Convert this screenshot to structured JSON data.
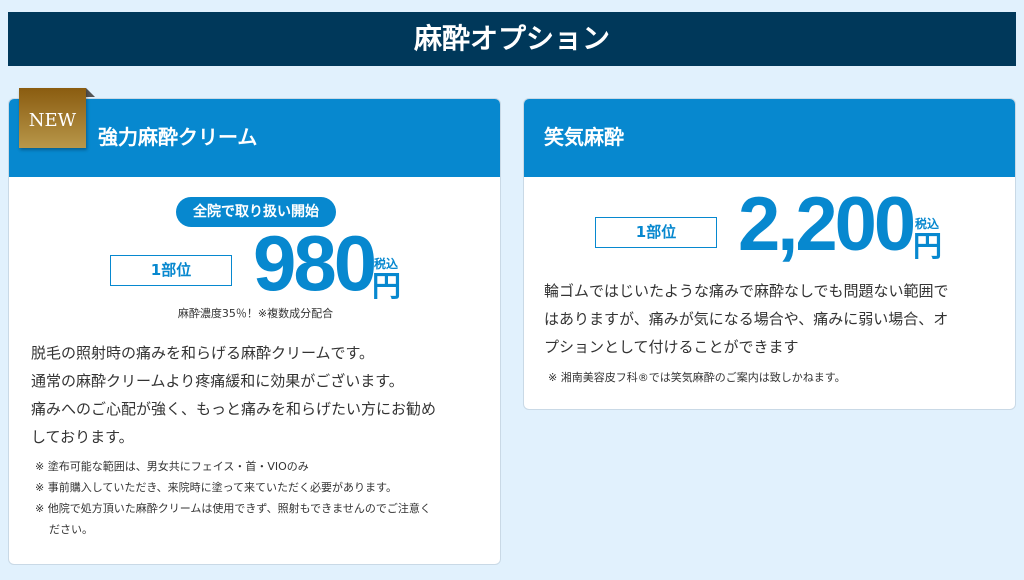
{
  "header": {
    "title": "麻酔オプション"
  },
  "cards": [
    {
      "badge": "NEW",
      "title": "強力麻酔クリーム",
      "pill": "全院で取り扱い開始",
      "unit": "1部位",
      "price": "980",
      "tax": "税込",
      "yen": "円",
      "sub": "麻酔濃度35％！※複数成分配合",
      "body": [
        "脱毛の照射時の痛みを和らげる麻酔クリームです。",
        "通常の麻酔クリームより疼痛緩和に効果がございます。",
        "痛みへのご心配が強く、もっと痛みを和らげたい方にお勧め",
        "しております。"
      ],
      "notes": [
        "※ 塗布可能な範囲は、男女共にフェイス・首・VIOのみ",
        "※ 事前購入していただき、来院時に塗って来ていただく必要があります。",
        "※ 他院で処方頂いた麻酔クリームは使用できず、照射もできませんのでご注意く",
        "ださい。"
      ]
    },
    {
      "title": "笑気麻酔",
      "unit": "1部位",
      "price": "2,200",
      "tax": "税込",
      "yen": "円",
      "body": [
        "輪ゴムではじいたような痛みで麻酔なしでも問題ない範囲で",
        "はありますが、痛みが気になる場合や、痛みに弱い場合、オ",
        "プションとして付けることができます"
      ],
      "notes": [
        "※ 湘南美容皮フ科®では笑気麻酔のご案内は致しかねます。"
      ]
    }
  ],
  "colors": {
    "navy": "#00385a",
    "blue": "#0788cf",
    "background": "#e1f1fd",
    "gold": "#a07a30"
  }
}
